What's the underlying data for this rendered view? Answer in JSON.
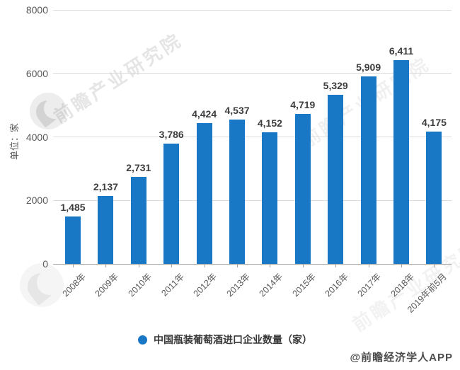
{
  "chart_data": {
    "type": "bar",
    "title": "",
    "categories": [
      "2008年",
      "2009年",
      "2010年",
      "2011年",
      "2012年",
      "2013年",
      "2014年",
      "2015年",
      "2016年",
      "2017年",
      "2018年",
      "2019年前5月"
    ],
    "values": [
      1485,
      2137,
      2731,
      3786,
      4424,
      4537,
      4152,
      4719,
      5329,
      5909,
      6411,
      4175
    ],
    "value_labels": [
      "1,485",
      "2,137",
      "2,731",
      "3,786",
      "4,424",
      "4,537",
      "4,152",
      "4,719",
      "5,329",
      "5,909",
      "6,411",
      "4,175"
    ],
    "xlabel": "",
    "ylabel": "单位：家",
    "ylim": [
      0,
      8000
    ],
    "yticks": [
      0,
      2000,
      4000,
      6000,
      8000
    ],
    "ytick_labels": [
      "0",
      "2000",
      "4000",
      "6000",
      "8000"
    ],
    "grid": true,
    "legend": [
      "中国瓶装葡萄酒进口企业数量（家）"
    ],
    "legend_position": "bottom",
    "bar_color": "#1878c6"
  },
  "axes": {
    "y_title": "单位：家"
  },
  "legend": {
    "label": "中国瓶装葡萄酒进口企业数量（家）",
    "marker_color": "#1878c6"
  },
  "watermark": {
    "brand_text": "前瞻产业研究院"
  },
  "credit": "@前瞻经济学人APP",
  "colors": {
    "bar": "#1878c6",
    "gridline": "#dcdcdc",
    "axis": "#a3a3a3",
    "tick_label": "#595959",
    "value_label": "#3d3d3d"
  }
}
